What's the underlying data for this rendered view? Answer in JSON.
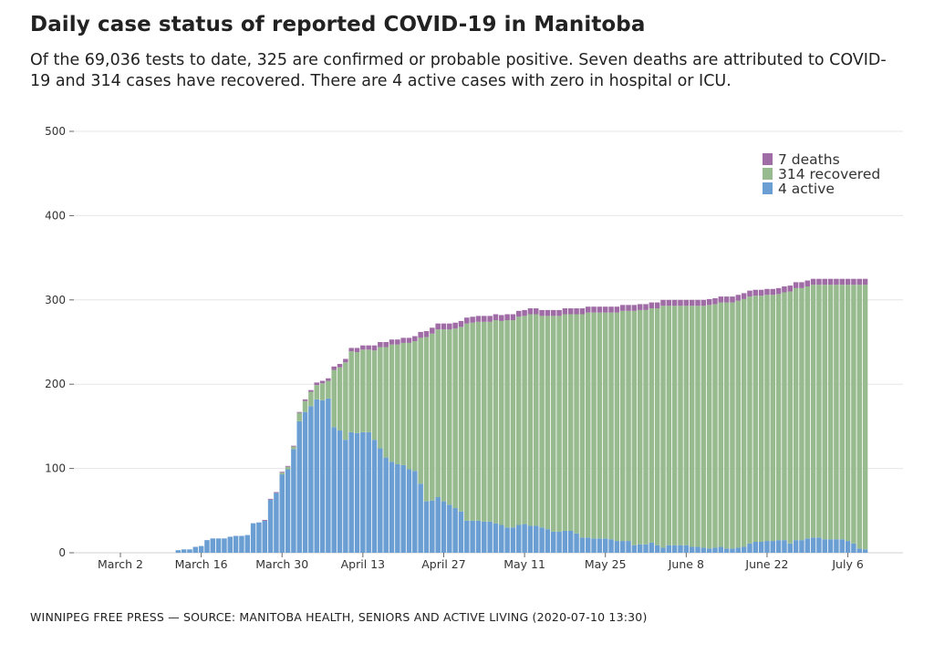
{
  "title": "Daily case status of reported COVID-19 in Manitoba",
  "subtitle": "Of the 69,036 tests to date, 325 are confirmed or probable positive. Seven deaths are attributed to COVID-19 and 314 cases have recovered. There are 4 active cases with zero in hospital or ICU.",
  "footer": "WINNIPEG FREE PRESS — SOURCE: MANITOBA HEALTH, SENIORS AND ACTIVE LIVING (2020-07-10 13:30)",
  "chart_data": {
    "type": "bar",
    "stacked": true,
    "ylim": [
      0,
      500
    ],
    "yticks": [
      "0",
      "100",
      "200",
      "300",
      "400",
      "500"
    ],
    "xtick_labels": [
      "March  2",
      "March 16",
      "March 30",
      "April 13",
      "April 27",
      "May 11",
      "May 25",
      "June  8",
      "June 22",
      "July  6"
    ],
    "grid": true,
    "legend_position": "top-right",
    "legend": [
      "7 deaths",
      "314 recovered",
      "4 active"
    ],
    "colors": {
      "active": "#6b9fd3",
      "recovered": "#97bb8f",
      "deaths": "#9f6ca5"
    },
    "x": [
      "Mar 12",
      "Mar 13",
      "Mar 14",
      "Mar 15",
      "Mar 16",
      "Mar 17",
      "Mar 18",
      "Mar 19",
      "Mar 20",
      "Mar 21",
      "Mar 22",
      "Mar 23",
      "Mar 24",
      "Mar 25",
      "Mar 26",
      "Mar 27",
      "Mar 28",
      "Mar 29",
      "Mar 30",
      "Mar 31",
      "Apr 1",
      "Apr 2",
      "Apr 3",
      "Apr 4",
      "Apr 5",
      "Apr 6",
      "Apr 7",
      "Apr 8",
      "Apr 9",
      "Apr 10",
      "Apr 11",
      "Apr 12",
      "Apr 13",
      "Apr 14",
      "Apr 15",
      "Apr 16",
      "Apr 17",
      "Apr 18",
      "Apr 19",
      "Apr 20",
      "Apr 21",
      "Apr 22",
      "Apr 23",
      "Apr 24",
      "Apr 25",
      "Apr 26",
      "Apr 27",
      "Apr 28",
      "Apr 29",
      "Apr 30",
      "May 1",
      "May 2",
      "May 3",
      "May 4",
      "May 5",
      "May 6",
      "May 7",
      "May 8",
      "May 9",
      "May 10",
      "May 11",
      "May 12",
      "May 13",
      "May 14",
      "May 15",
      "May 16",
      "May 17",
      "May 18",
      "May 19",
      "May 20",
      "May 21",
      "May 22",
      "May 23",
      "May 24",
      "May 25",
      "May 26",
      "May 27",
      "May 28",
      "May 29",
      "May 30",
      "May 31",
      "Jun 1",
      "Jun 2",
      "Jun 3",
      "Jun 4",
      "Jun 5",
      "Jun 6",
      "Jun 7",
      "Jun 8",
      "Jun 9",
      "Jun 10",
      "Jun 11",
      "Jun 12",
      "Jun 13",
      "Jun 14",
      "Jun 15",
      "Jun 16",
      "Jun 17",
      "Jun 18",
      "Jun 19",
      "Jun 20",
      "Jun 21",
      "Jun 22",
      "Jun 23",
      "Jun 24",
      "Jun 25",
      "Jun 26",
      "Jun 27",
      "Jun 28",
      "Jun 29",
      "Jun 30",
      "Jul 1",
      "Jul 2",
      "Jul 3",
      "Jul 4",
      "Jul 5",
      "Jul 6",
      "Jul 7",
      "Jul 8",
      "Jul 9"
    ],
    "series": [
      {
        "name": "active",
        "values": [
          3,
          4,
          4,
          7,
          8,
          15,
          17,
          17,
          17,
          19,
          20,
          20,
          21,
          35,
          36,
          38,
          63,
          71,
          93,
          99,
          123,
          156,
          167,
          174,
          182,
          181,
          183,
          149,
          145,
          134,
          143,
          142,
          143,
          143,
          134,
          124,
          113,
          108,
          105,
          104,
          99,
          97,
          82,
          61,
          62,
          66,
          61,
          57,
          53,
          49,
          38,
          38,
          38,
          37,
          37,
          35,
          33,
          30,
          30,
          33,
          34,
          32,
          32,
          30,
          28,
          25,
          25,
          26,
          26,
          23,
          18,
          18,
          17,
          17,
          17,
          16,
          14,
          14,
          14,
          9,
          10,
          10,
          12,
          9,
          6,
          9,
          9,
          9,
          9,
          7,
          7,
          6,
          5,
          6,
          7,
          5,
          5,
          6,
          7,
          11,
          13,
          13,
          14,
          14,
          15,
          15,
          11,
          15,
          15,
          17,
          18,
          18,
          16,
          16,
          16,
          16,
          14,
          11,
          5,
          4
        ]
      },
      {
        "name": "recovered",
        "values": [
          0,
          0,
          0,
          0,
          0,
          0,
          0,
          0,
          0,
          0,
          0,
          0,
          0,
          0,
          0,
          0,
          0,
          0,
          2,
          3,
          3,
          10,
          13,
          17,
          17,
          20,
          21,
          68,
          75,
          92,
          96,
          96,
          98,
          98,
          106,
          120,
          131,
          139,
          142,
          145,
          150,
          154,
          173,
          195,
          198,
          199,
          204,
          208,
          213,
          219,
          234,
          235,
          236,
          237,
          237,
          241,
          242,
          246,
          246,
          247,
          247,
          251,
          251,
          251,
          253,
          256,
          256,
          257,
          257,
          260,
          265,
          267,
          268,
          268,
          268,
          269,
          271,
          273,
          273,
          278,
          278,
          278,
          278,
          281,
          287,
          284,
          284,
          284,
          284,
          286,
          286,
          287,
          289,
          289,
          290,
          292,
          292,
          293,
          294,
          293,
          292,
          292,
          292,
          292,
          292,
          294,
          299,
          299,
          299,
          299,
          300,
          300,
          302,
          302,
          302,
          302,
          304,
          307,
          313,
          314
        ]
      },
      {
        "name": "deaths",
        "values": [
          0,
          0,
          0,
          0,
          0,
          0,
          0,
          0,
          0,
          0,
          0,
          0,
          0,
          0,
          0,
          1,
          1,
          1,
          1,
          1,
          1,
          1,
          2,
          2,
          3,
          3,
          3,
          4,
          4,
          4,
          4,
          5,
          5,
          5,
          6,
          6,
          6,
          6,
          6,
          6,
          6,
          6,
          7,
          7,
          7,
          7,
          7,
          7,
          7,
          7,
          7,
          7,
          7,
          7,
          7,
          7,
          7,
          7,
          7,
          7,
          7,
          7,
          7,
          7,
          7,
          7,
          7,
          7,
          7,
          7,
          7,
          7,
          7,
          7,
          7,
          7,
          7,
          7,
          7,
          7,
          7,
          7,
          7,
          7,
          7,
          7,
          7,
          7,
          7,
          7,
          7,
          7,
          7,
          7,
          7,
          7,
          7,
          7,
          7,
          7,
          7,
          7,
          7,
          7,
          7,
          7,
          7,
          7,
          7,
          7,
          7,
          7,
          7,
          7,
          7,
          7,
          7,
          7,
          7,
          7
        ]
      }
    ]
  }
}
